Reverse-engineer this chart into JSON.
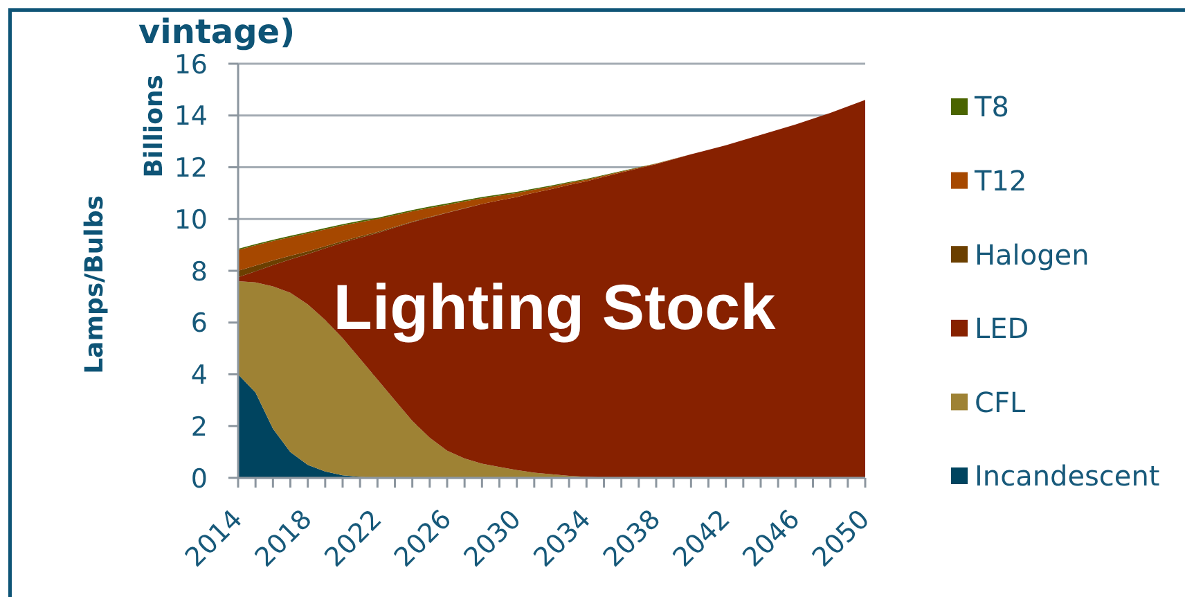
{
  "chart_data": {
    "type": "area",
    "stacked": true,
    "title": "vintage)",
    "ylabel": "Lamps/Bulbs",
    "annotations": [
      "Billions",
      "Lighting Stock"
    ],
    "x": [
      2014,
      2015,
      2016,
      2017,
      2018,
      2019,
      2020,
      2021,
      2022,
      2023,
      2024,
      2025,
      2026,
      2027,
      2028,
      2029,
      2030,
      2031,
      2032,
      2033,
      2034,
      2036,
      2038,
      2040,
      2042,
      2044,
      2046,
      2048,
      2050
    ],
    "xlim": [
      2014,
      2050
    ],
    "xticks": [
      2014,
      {
        "value": 2015,
        "label": null
      },
      {
        "value": 2016,
        "label": null
      },
      {
        "value": 2017,
        "label": null
      },
      2018,
      {
        "value": 2019,
        "label": null
      },
      {
        "value": 2020,
        "label": null
      },
      {
        "value": 2021,
        "label": null
      },
      2022,
      {
        "value": 2023,
        "label": null
      },
      {
        "value": 2024,
        "label": null
      },
      {
        "value": 2025,
        "label": null
      },
      2026,
      {
        "value": 2027,
        "label": null
      },
      {
        "value": 2028,
        "label": null
      },
      {
        "value": 2029,
        "label": null
      },
      2030,
      {
        "value": 2031,
        "label": null
      },
      {
        "value": 2032,
        "label": null
      },
      {
        "value": 2033,
        "label": null
      },
      2034,
      {
        "value": 2035,
        "label": null
      },
      {
        "value": 2036,
        "label": null
      },
      {
        "value": 2037,
        "label": null
      },
      2038,
      {
        "value": 2039,
        "label": null
      },
      {
        "value": 2040,
        "label": null
      },
      {
        "value": 2041,
        "label": null
      },
      2042,
      {
        "value": 2043,
        "label": null
      },
      {
        "value": 2044,
        "label": null
      },
      {
        "value": 2045,
        "label": null
      },
      2046,
      {
        "value": 2047,
        "label": null
      },
      {
        "value": 2048,
        "label": null
      },
      {
        "value": 2049,
        "label": null
      },
      2050
    ],
    "ylim": [
      0,
      16
    ],
    "yticks": [
      0,
      2,
      4,
      6,
      8,
      10,
      12,
      14,
      16
    ],
    "grid": "y",
    "legend": "right",
    "series": [
      {
        "name": "Incandescent",
        "color": "#00445f",
        "values": [
          4.0,
          3.3,
          1.9,
          1.0,
          0.5,
          0.25,
          0.1,
          0.04,
          0,
          0,
          0,
          0,
          0,
          0,
          0,
          0,
          0,
          0,
          0,
          0,
          0,
          0,
          0,
          0,
          0,
          0,
          0,
          0,
          0
        ]
      },
      {
        "name": "CFL",
        "color": "#9e8234",
        "values": [
          3.6,
          4.25,
          5.5,
          6.15,
          6.2,
          5.85,
          5.3,
          4.56,
          3.8,
          3.0,
          2.2,
          1.55,
          1.05,
          0.75,
          0.55,
          0.42,
          0.3,
          0.2,
          0.14,
          0.08,
          0.04,
          0,
          0,
          0,
          0,
          0,
          0,
          0,
          0
        ]
      },
      {
        "name": "LED",
        "color": "#872100",
        "values": [
          0.15,
          0.43,
          0.82,
          1.29,
          1.95,
          2.77,
          3.69,
          4.68,
          5.66,
          6.67,
          7.68,
          8.51,
          9.19,
          9.66,
          10.03,
          10.3,
          10.55,
          10.82,
          11.02,
          11.24,
          11.42,
          11.8,
          12.12,
          12.5,
          12.85,
          13.25,
          13.65,
          14.1,
          14.6
        ]
      },
      {
        "name": "Halogen",
        "color": "#6b3f00",
        "values": [
          0.25,
          0.22,
          0.18,
          0.14,
          0.1,
          0.08,
          0.06,
          0.05,
          0.04,
          0.03,
          0.02,
          0.02,
          0.01,
          0.01,
          0,
          0,
          0,
          0,
          0,
          0,
          0,
          0,
          0,
          0,
          0,
          0,
          0,
          0,
          0
        ]
      },
      {
        "name": "T12",
        "color": "#a64800",
        "values": [
          0.8,
          0.78,
          0.75,
          0.72,
          0.7,
          0.65,
          0.6,
          0.55,
          0.5,
          0.45,
          0.4,
          0.35,
          0.3,
          0.26,
          0.22,
          0.18,
          0.15,
          0.12,
          0.1,
          0.08,
          0.06,
          0.03,
          0.02,
          0,
          0,
          0,
          0,
          0,
          0
        ]
      },
      {
        "name": "T8",
        "color": "#4a6400",
        "values": [
          0.05,
          0.05,
          0.05,
          0.05,
          0.05,
          0.05,
          0.05,
          0.05,
          0.05,
          0.05,
          0.05,
          0.05,
          0.05,
          0.05,
          0.05,
          0.05,
          0.05,
          0.04,
          0.04,
          0.03,
          0.03,
          0.02,
          0.01,
          0,
          0,
          0,
          0,
          0,
          0
        ]
      }
    ]
  }
}
